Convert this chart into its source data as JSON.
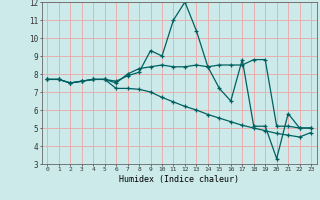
{
  "xlabel": "Humidex (Indice chaleur)",
  "background_color": "#cceaea",
  "grid_color": "#e8b0b0",
  "line_color": "#006060",
  "xlim": [
    -0.5,
    23.5
  ],
  "ylim": [
    3,
    12
  ],
  "xticks": [
    0,
    1,
    2,
    3,
    4,
    5,
    6,
    7,
    8,
    9,
    10,
    11,
    12,
    13,
    14,
    15,
    16,
    17,
    18,
    19,
    20,
    21,
    22,
    23
  ],
  "yticks": [
    3,
    4,
    5,
    6,
    7,
    8,
    9,
    10,
    11,
    12
  ],
  "series1_x": [
    0,
    1,
    2,
    3,
    4,
    5,
    6,
    7,
    8,
    9,
    10,
    11,
    12,
    13,
    14,
    15,
    16,
    17,
    18,
    19,
    20,
    21,
    22,
    23
  ],
  "series1_y": [
    7.7,
    7.7,
    7.5,
    7.6,
    7.7,
    7.7,
    7.5,
    8.0,
    8.3,
    8.4,
    8.5,
    8.4,
    8.4,
    8.5,
    8.4,
    8.5,
    8.5,
    8.5,
    8.8,
    8.8,
    5.1,
    5.1,
    5.0,
    5.0
  ],
  "series2_x": [
    0,
    1,
    2,
    3,
    4,
    5,
    6,
    7,
    8,
    9,
    10,
    11,
    12,
    13,
    14,
    15,
    16,
    17,
    18,
    19,
    20,
    21,
    22,
    23
  ],
  "series2_y": [
    7.7,
    7.7,
    7.5,
    7.6,
    7.7,
    7.7,
    7.6,
    7.9,
    8.1,
    9.3,
    9.0,
    11.0,
    12.0,
    10.4,
    8.4,
    7.2,
    6.5,
    8.8,
    5.1,
    5.1,
    3.3,
    5.8,
    5.0,
    5.0
  ],
  "series3_x": [
    0,
    1,
    2,
    3,
    4,
    5,
    6,
    7,
    8,
    9,
    10,
    11,
    12,
    13,
    14,
    15,
    16,
    17,
    18,
    19,
    20,
    21,
    22,
    23
  ],
  "series3_y": [
    7.7,
    7.7,
    7.5,
    7.6,
    7.7,
    7.7,
    7.2,
    7.2,
    7.15,
    7.0,
    6.7,
    6.45,
    6.2,
    6.0,
    5.75,
    5.55,
    5.35,
    5.15,
    5.0,
    4.85,
    4.7,
    4.6,
    4.5,
    4.75
  ]
}
